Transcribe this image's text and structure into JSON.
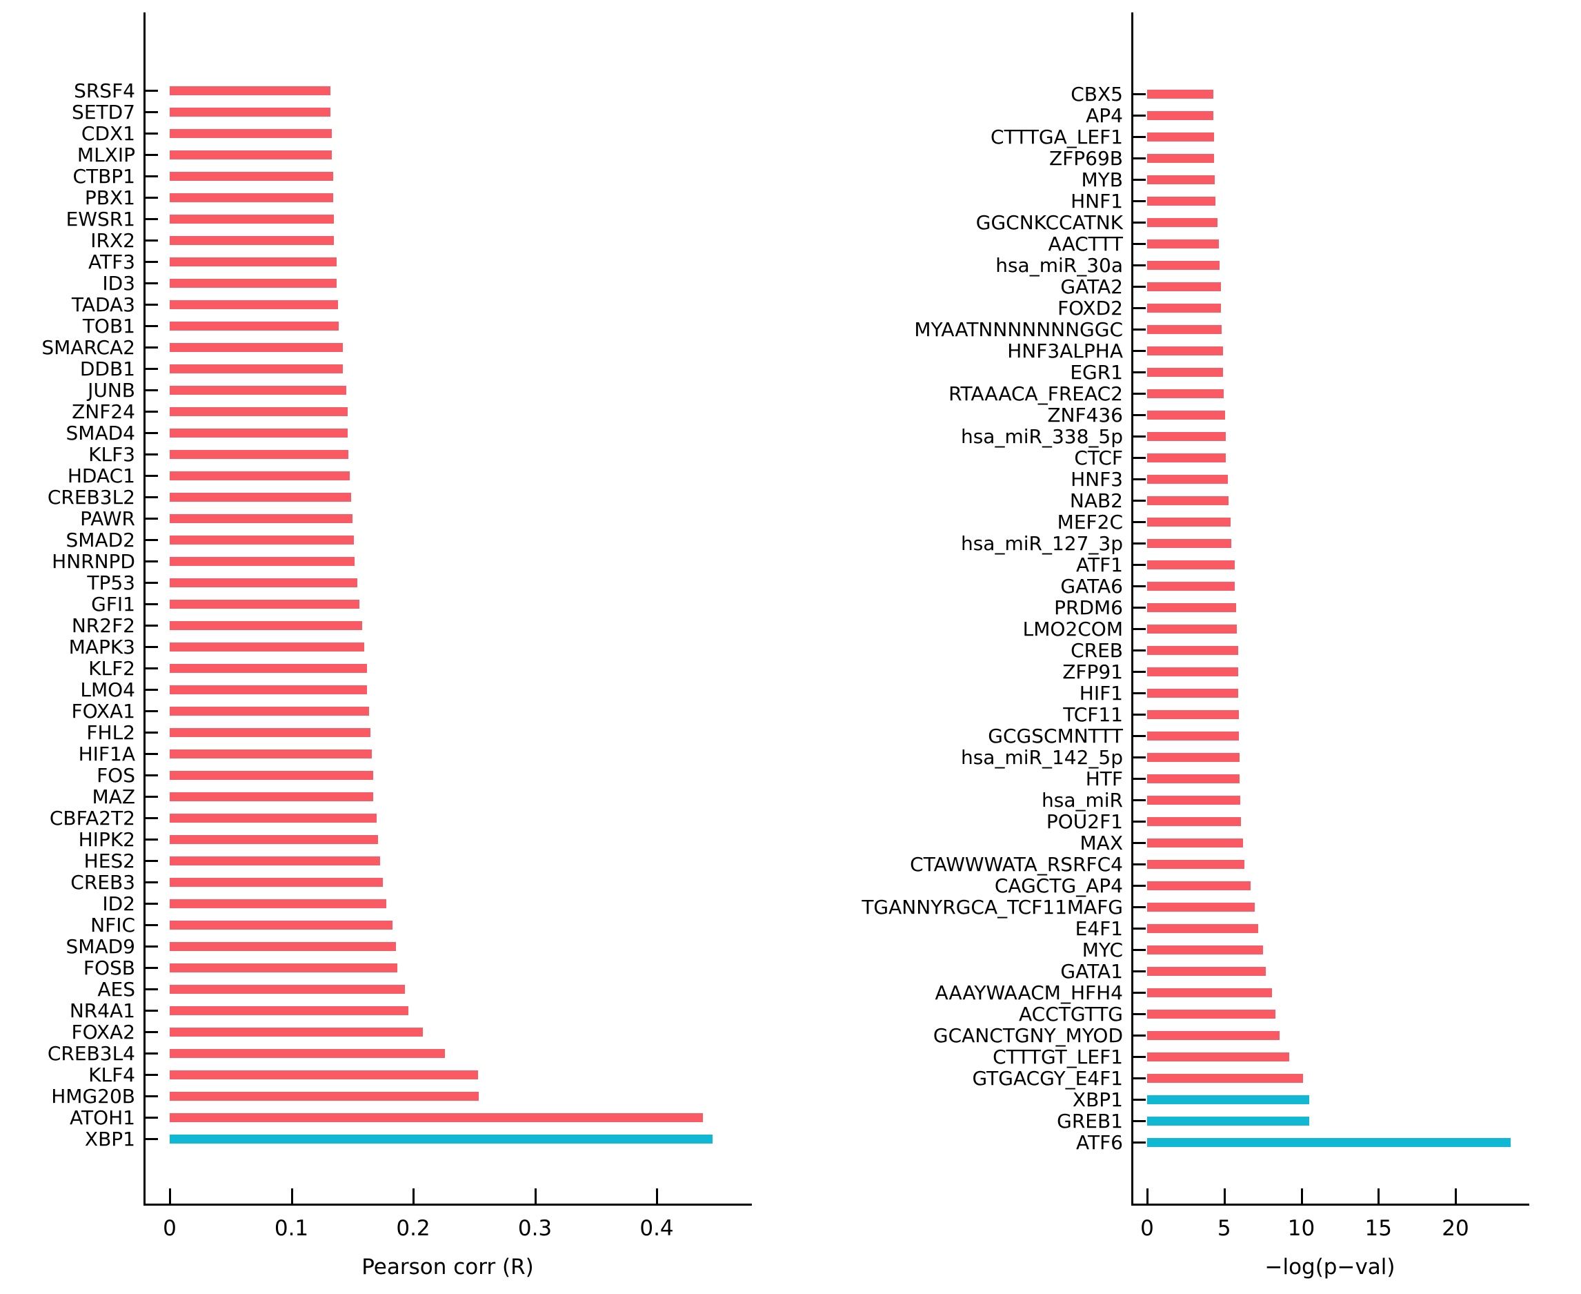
{
  "colors": {
    "bar_default": "#fa5a64",
    "bar_highlight": "#10b8d4",
    "axis": "#000000",
    "background": "#ffffff"
  },
  "chart_data": [
    {
      "type": "bar",
      "orientation": "horizontal",
      "title": "",
      "xlabel": "Pearson corr (R)",
      "ylabel": "",
      "grid": false,
      "legend": null,
      "xlim": [
        0,
        0.478
      ],
      "xticks": [
        0,
        0.1,
        0.2,
        0.3,
        0.4
      ],
      "xtick_labels": [
        "0",
        "0.1",
        "0.2",
        "0.3",
        "0.4"
      ],
      "bar_color_default": "#fa5a64",
      "bar_color_highlight": "#10b8d4",
      "highlighted_categories": [
        "XBP1"
      ],
      "categories": [
        "SRSF4",
        "SETD7",
        "CDX1",
        "MLXIP",
        "CTBP1",
        "PBX1",
        "EWSR1",
        "IRX2",
        "ATF3",
        "ID3",
        "TADA3",
        "TOB1",
        "SMARCA2",
        "DDB1",
        "JUNB",
        "ZNF24",
        "SMAD4",
        "KLF3",
        "HDAC1",
        "CREB3L2",
        "PAWR",
        "SMAD2",
        "HNRNPD",
        "TP53",
        "GFI1",
        "NR2F2",
        "MAPK3",
        "KLF2",
        "LMO4",
        "FOXA1",
        "FHL2",
        "HIF1A",
        "FOS",
        "MAZ",
        "CBFA2T2",
        "HIPK2",
        "HES2",
        "CREB3",
        "ID2",
        "NFIC",
        "SMAD9",
        "FOSB",
        "AES",
        "NR4A1",
        "FOXA2",
        "CREB3L4",
        "KLF4",
        "HMG20B",
        "ATOH1",
        "XBP1"
      ],
      "values": [
        0.132,
        0.132,
        0.133,
        0.133,
        0.134,
        0.134,
        0.135,
        0.135,
        0.137,
        0.137,
        0.138,
        0.139,
        0.142,
        0.142,
        0.145,
        0.146,
        0.146,
        0.147,
        0.148,
        0.149,
        0.15,
        0.151,
        0.152,
        0.154,
        0.156,
        0.158,
        0.16,
        0.162,
        0.162,
        0.164,
        0.165,
        0.166,
        0.167,
        0.167,
        0.17,
        0.171,
        0.173,
        0.175,
        0.178,
        0.183,
        0.186,
        0.187,
        0.193,
        0.196,
        0.208,
        0.226,
        0.253,
        0.254,
        0.438,
        0.446
      ]
    },
    {
      "type": "bar",
      "orientation": "horizontal",
      "title": "",
      "xlabel": "−log(p−val)",
      "ylabel": "",
      "grid": false,
      "legend": null,
      "xlim": [
        0,
        24.8
      ],
      "xticks": [
        0,
        5,
        10,
        15,
        20
      ],
      "xtick_labels": [
        "0",
        "5",
        "10",
        "15",
        "20"
      ],
      "bar_color_default": "#fa5a64",
      "bar_color_highlight": "#10b8d4",
      "highlighted_categories": [
        "XBP1",
        "GREB1",
        "ATF6"
      ],
      "categories": [
        "CBX5",
        "AP4",
        "CTTTGA_LEF1",
        "ZFP69B",
        "MYB",
        "HNF1",
        "GGCNKCCATNK",
        "AACTTT",
        "hsa_miR_30a",
        "GATA2",
        "FOXD2",
        "MYAATNNNNNNNGGC",
        "HNF3ALPHA",
        "EGR1",
        "RTAAACA_FREAC2",
        "ZNF436",
        "hsa_miR_338_5p",
        "CTCF",
        "HNF3",
        "NAB2",
        "MEF2C",
        "hsa_miR_127_3p",
        "ATF1",
        "GATA6",
        "PRDM6",
        "LMO2COM",
        "CREB",
        "ZFP91",
        "HIF1",
        "TCF11",
        "GCGSCMNTTT",
        "hsa_miR_142_5p",
        "HTF",
        "hsa_miR",
        "POU2F1",
        "MAX",
        "CTAWWWATA_RSRFC4",
        "CAGCTG_AP4",
        "TGANNYRGCA_TCF11MAFG",
        "E4F1",
        "MYC",
        "GATA1",
        "AAAYWAACM_HFH4",
        "ACCTGTTG",
        "GCANCTGNY_MYOD",
        "CTTTGT_LEF1",
        "GTGACGY_E4F1",
        "XBP1",
        "GREB1",
        "ATF6"
      ],
      "values": [
        4.3,
        4.3,
        4.35,
        4.35,
        4.4,
        4.45,
        4.55,
        4.65,
        4.7,
        4.8,
        4.8,
        4.85,
        4.9,
        4.9,
        4.95,
        5.05,
        5.1,
        5.1,
        5.25,
        5.3,
        5.4,
        5.45,
        5.7,
        5.7,
        5.75,
        5.8,
        5.9,
        5.9,
        5.9,
        5.95,
        5.95,
        6.0,
        6.0,
        6.05,
        6.1,
        6.2,
        6.3,
        6.7,
        7.0,
        7.2,
        7.5,
        7.7,
        8.1,
        8.3,
        8.6,
        9.2,
        10.1,
        10.5,
        10.5,
        23.6
      ]
    }
  ]
}
